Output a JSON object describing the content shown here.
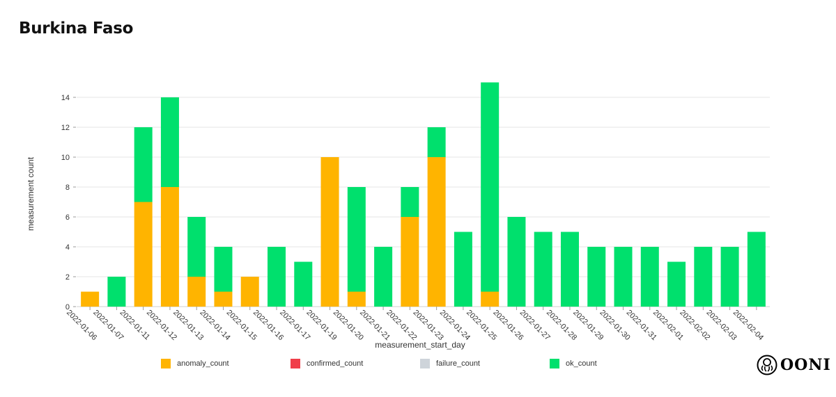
{
  "page": {
    "title": "Burkina Faso"
  },
  "colors": {
    "anomaly": "#ffb400",
    "confirmed": "#f03e4a",
    "failure": "#ced4da",
    "ok": "#00e06d",
    "grid": "#e6e6e6"
  },
  "legend": [
    {
      "key": "anomaly",
      "label": "anomaly_count"
    },
    {
      "key": "confirmed",
      "label": "confirmed_count"
    },
    {
      "key": "failure",
      "label": "failure_count"
    },
    {
      "key": "ok",
      "label": "ok_count"
    }
  ],
  "logo": {
    "text": "OONI",
    "icon": "ooni-octopus-icon"
  },
  "chart_data": {
    "type": "bar",
    "stacked": true,
    "title": "Burkina Faso",
    "xlabel": "measurement_start_day",
    "ylabel": "measurement count",
    "ylim": [
      0,
      15
    ],
    "yticks": [
      0,
      2,
      4,
      6,
      8,
      10,
      12,
      14
    ],
    "grid": true,
    "legend_position": "bottom",
    "categories": [
      "2022-01-06",
      "2022-01-07",
      "2022-01-11",
      "2022-01-12",
      "2022-01-13",
      "2022-01-14",
      "2022-01-15",
      "2022-01-16",
      "2022-01-17",
      "2022-01-19",
      "2022-01-20",
      "2022-01-21",
      "2022-01-22",
      "2022-01-23",
      "2022-01-24",
      "2022-01-25",
      "2022-01-26",
      "2022-01-27",
      "2022-01-28",
      "2022-01-29",
      "2022-01-30",
      "2022-01-31",
      "2022-02-01",
      "2022-02-02",
      "2022-02-03",
      "2022-02-04"
    ],
    "series": [
      {
        "name": "anomaly_count",
        "key": "anomaly",
        "values": [
          1,
          0,
          7,
          8,
          2,
          1,
          2,
          0,
          0,
          10,
          1,
          0,
          6,
          10,
          0,
          1,
          0,
          0,
          0,
          0,
          0,
          0,
          0,
          0,
          0,
          0
        ]
      },
      {
        "name": "confirmed_count",
        "key": "confirmed",
        "values": [
          0,
          0,
          0,
          0,
          0,
          0,
          0,
          0,
          0,
          0,
          0,
          0,
          0,
          0,
          0,
          0,
          0,
          0,
          0,
          0,
          0,
          0,
          0,
          0,
          0,
          0
        ]
      },
      {
        "name": "failure_count",
        "key": "failure",
        "values": [
          0,
          0,
          0,
          0,
          0,
          0,
          0,
          0,
          0,
          0,
          0,
          0,
          0,
          0,
          0,
          0,
          0,
          0,
          0,
          0,
          0,
          0,
          0,
          0,
          0,
          0
        ]
      },
      {
        "name": "ok_count",
        "key": "ok",
        "values": [
          0,
          2,
          5,
          6,
          4,
          3,
          0,
          4,
          3,
          0,
          7,
          4,
          2,
          2,
          5,
          14,
          6,
          5,
          5,
          4,
          4,
          4,
          3,
          4,
          4,
          5
        ]
      }
    ]
  }
}
